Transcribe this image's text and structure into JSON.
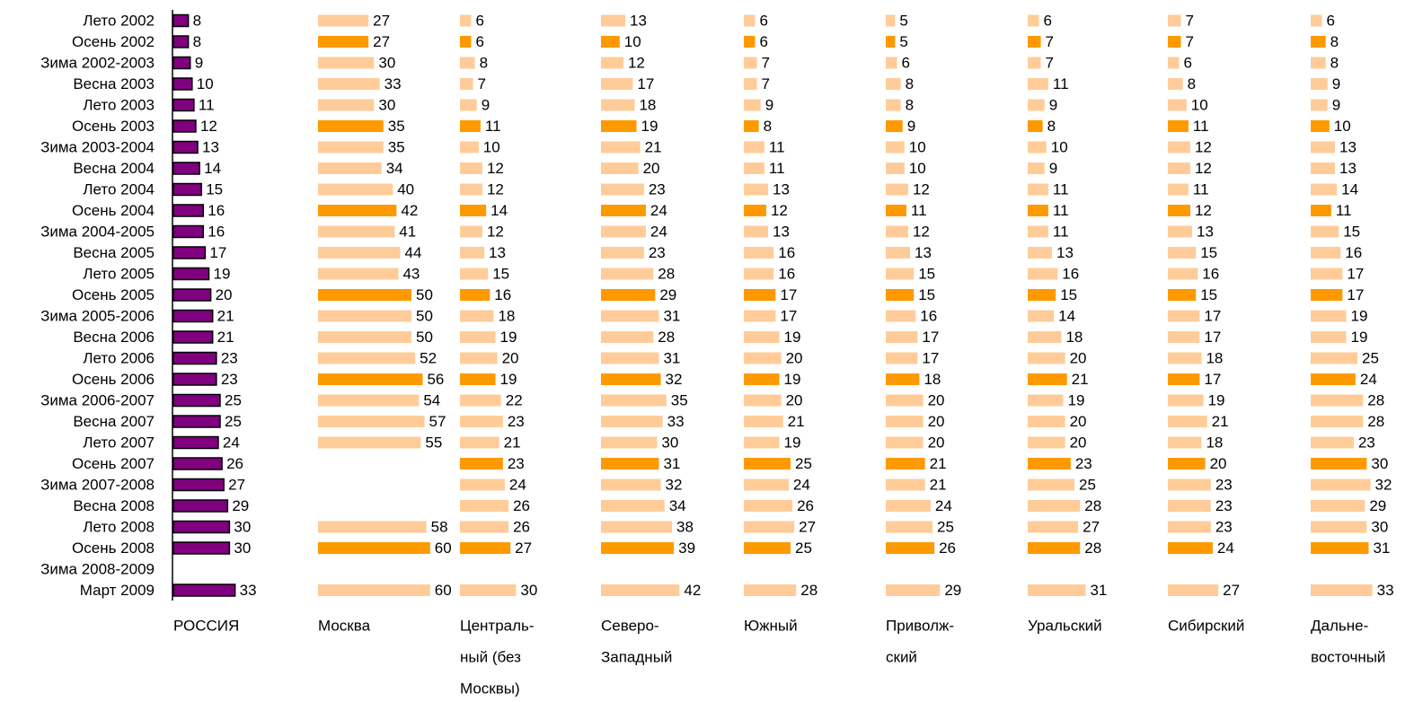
{
  "chart_data": {
    "type": "bar",
    "categories": [
      "Лето 2002",
      "Осень 2002",
      "Зима 2002-2003",
      "Весна 2003",
      "Лето 2003",
      "Осень 2003",
      "Зима 2003-2004",
      "Весна 2004",
      "Лето 2004",
      "Осень 2004",
      "Зима 2004-2005",
      "Весна 2005",
      "Лето 2005",
      "Осень 2005",
      "Зима 2005-2006",
      "Весна 2006",
      "Лето 2006",
      "Осень 2006",
      "Зима 2006-2007",
      "Весна 2007",
      "Лето 2007",
      "Осень 2007",
      "Зима 2007-2008",
      "Весна 2008",
      "Лето 2008",
      "Осень 2008",
      "Зима 2008-2009",
      "Март 2009"
    ],
    "highlighted": [
      1,
      5,
      9,
      13,
      17,
      21,
      25
    ],
    "series": [
      {
        "name": [
          "РОССИЯ"
        ],
        "color": "#800080",
        "highlight_color": "#800080",
        "values": [
          8,
          8,
          9,
          10,
          11,
          12,
          13,
          14,
          15,
          16,
          16,
          17,
          19,
          20,
          21,
          21,
          23,
          23,
          25,
          25,
          24,
          26,
          27,
          29,
          30,
          30,
          null,
          33
        ]
      },
      {
        "name": [
          "Москва"
        ],
        "color": "#ffcc99",
        "highlight_color": "#ff9900",
        "values": [
          27,
          27,
          30,
          33,
          30,
          35,
          35,
          34,
          40,
          42,
          41,
          44,
          43,
          50,
          50,
          50,
          52,
          56,
          54,
          57,
          55,
          null,
          null,
          null,
          58,
          60,
          null,
          60
        ]
      },
      {
        "name": [
          "Централь-",
          "ный (без",
          "Москвы)"
        ],
        "color": "#ffcc99",
        "highlight_color": "#ff9900",
        "values": [
          6,
          6,
          8,
          7,
          9,
          11,
          10,
          12,
          12,
          14,
          12,
          13,
          15,
          16,
          18,
          19,
          20,
          19,
          22,
          23,
          21,
          23,
          24,
          26,
          26,
          27,
          null,
          30
        ]
      },
      {
        "name": [
          "Северо-",
          "Западный"
        ],
        "color": "#ffcc99",
        "highlight_color": "#ff9900",
        "values": [
          13,
          10,
          12,
          17,
          18,
          19,
          21,
          20,
          23,
          24,
          24,
          23,
          28,
          29,
          31,
          28,
          31,
          32,
          35,
          33,
          30,
          31,
          32,
          34,
          38,
          39,
          null,
          42
        ]
      },
      {
        "name": [
          "Южный"
        ],
        "color": "#ffcc99",
        "highlight_color": "#ff9900",
        "values": [
          6,
          6,
          7,
          7,
          9,
          8,
          11,
          11,
          13,
          12,
          13,
          16,
          16,
          17,
          17,
          19,
          20,
          19,
          20,
          21,
          19,
          25,
          24,
          26,
          27,
          25,
          null,
          28
        ]
      },
      {
        "name": [
          "Приволж-",
          "ский"
        ],
        "color": "#ffcc99",
        "highlight_color": "#ff9900",
        "values": [
          5,
          5,
          6,
          8,
          8,
          9,
          10,
          10,
          12,
          11,
          12,
          13,
          15,
          15,
          16,
          17,
          17,
          18,
          20,
          20,
          20,
          21,
          21,
          24,
          25,
          26,
          null,
          29
        ]
      },
      {
        "name": [
          "Уральский"
        ],
        "color": "#ffcc99",
        "highlight_color": "#ff9900",
        "values": [
          6,
          7,
          7,
          11,
          9,
          8,
          10,
          9,
          11,
          11,
          11,
          13,
          16,
          15,
          14,
          18,
          20,
          21,
          19,
          20,
          20,
          23,
          25,
          28,
          27,
          28,
          null,
          31
        ]
      },
      {
        "name": [
          "Сибирский"
        ],
        "color": "#ffcc99",
        "highlight_color": "#ff9900",
        "values": [
          7,
          7,
          6,
          8,
          10,
          11,
          12,
          12,
          11,
          12,
          13,
          15,
          16,
          15,
          17,
          17,
          18,
          17,
          19,
          21,
          18,
          20,
          23,
          23,
          23,
          24,
          null,
          27
        ]
      },
      {
        "name": [
          "Дальне-",
          "восточный"
        ],
        "color": "#ffcc99",
        "highlight_color": "#ff9900",
        "values": [
          6,
          8,
          8,
          9,
          9,
          10,
          13,
          13,
          14,
          11,
          15,
          16,
          17,
          17,
          19,
          19,
          25,
          24,
          28,
          28,
          23,
          30,
          32,
          29,
          30,
          31,
          null,
          33
        ]
      }
    ]
  }
}
